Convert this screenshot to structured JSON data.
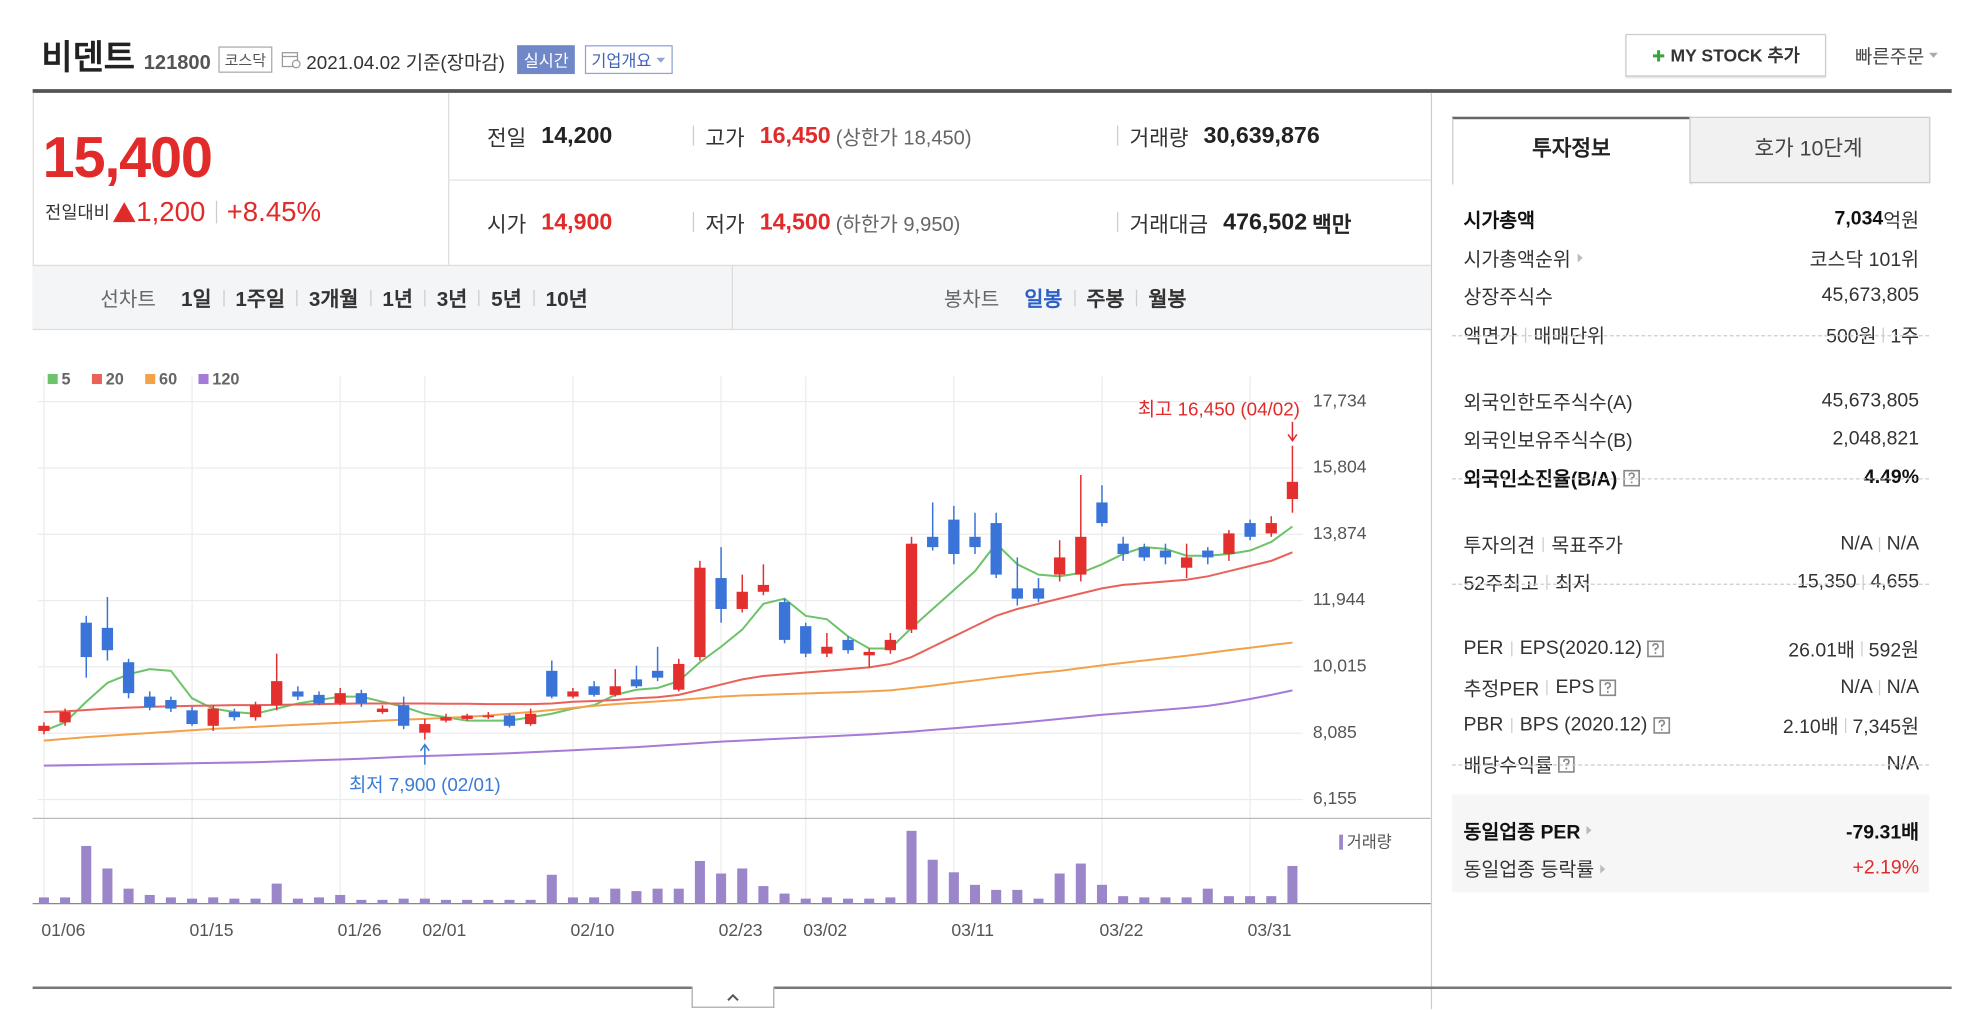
{
  "header": {
    "name": "비덴트",
    "code": "121800",
    "market": "코스닥",
    "date": "2021.04.02 기준(장마감)",
    "realtime": "실시간",
    "company": "기업개요",
    "my_stock": "MY STOCK 추가",
    "quick_order": "빠른주문"
  },
  "quote": {
    "price": "15,400",
    "change_label": "전일대비",
    "change": "1,200",
    "rate": "+8.45%",
    "fields": [
      {
        "label": "전일",
        "value": "14,200"
      },
      {
        "label": "고가",
        "value": "16,450",
        "note": "(상한가 18,450)",
        "red": true
      },
      {
        "label": "거래량",
        "value": "30,639,876"
      },
      {
        "label": "시가",
        "value": "14,900",
        "red": true
      },
      {
        "label": "저가",
        "value": "14,500",
        "note": "(하한가 9,950)",
        "red": true
      },
      {
        "label": "거래대금",
        "value": "476,502",
        "unit": "백만"
      }
    ]
  },
  "chart_tabs": {
    "line_label": "선차트",
    "line": [
      "1일",
      "1주일",
      "3개월",
      "1년",
      "3년",
      "5년",
      "10년"
    ],
    "candle_label": "봉차트",
    "candle": [
      "일봉",
      "주봉",
      "월봉"
    ],
    "candle_selected": 0
  },
  "chart_data": {
    "type": "candlestick",
    "categories": [
      "01/06",
      null,
      null,
      null,
      null,
      null,
      null,
      "01/15",
      null,
      null,
      null,
      null,
      null,
      null,
      "01/26",
      null,
      null,
      null,
      "02/01",
      null,
      null,
      null,
      null,
      null,
      null,
      "02/10",
      null,
      null,
      null,
      null,
      null,
      null,
      "02/23",
      null,
      null,
      null,
      "03/02",
      null,
      null,
      null,
      null,
      null,
      null,
      "03/11",
      null,
      null,
      null,
      null,
      null,
      null,
      "03/22",
      null,
      null,
      null,
      null,
      null,
      null,
      "03/31",
      null,
      null
    ],
    "open": [
      8150,
      8400,
      11300,
      11150,
      10150,
      9150,
      9050,
      8750,
      8300,
      8700,
      8550,
      8900,
      9300,
      9200,
      8950,
      9250,
      8700,
      8900,
      8100,
      8450,
      8500,
      8550,
      8600,
      8350,
      9900,
      9150,
      9450,
      9200,
      9650,
      9900,
      9350,
      10300,
      12600,
      11700,
      12200,
      11900,
      11200,
      10400,
      10800,
      10350,
      10500,
      11100,
      13800,
      14300,
      13800,
      14200,
      12300,
      12300,
      12700,
      12700,
      14800,
      13600,
      13500,
      13400,
      12900,
      13400,
      13300,
      14200,
      13900,
      14900
    ],
    "high": [
      8400,
      8800,
      11500,
      12050,
      10250,
      9300,
      9150,
      8850,
      8900,
      8800,
      9000,
      10400,
      9450,
      9300,
      9400,
      9350,
      8900,
      9150,
      8500,
      8650,
      8650,
      8700,
      8650,
      8800,
      10200,
      9400,
      9600,
      9950,
      10050,
      10600,
      10250,
      13100,
      13500,
      12700,
      13000,
      12000,
      11300,
      11000,
      10900,
      10550,
      11000,
      13800,
      14800,
      14700,
      14500,
      14500,
      13200,
      12600,
      13700,
      15600,
      15300,
      13800,
      13600,
      13600,
      13600,
      13500,
      14000,
      14300,
      14400,
      16450
    ],
    "low": [
      8050,
      8300,
      9700,
      10200,
      9100,
      8750,
      8700,
      8300,
      8150,
      8450,
      8450,
      8750,
      9050,
      8900,
      8900,
      8850,
      8650,
      8200,
      7900,
      8400,
      8450,
      8500,
      8250,
      8300,
      9100,
      9100,
      9150,
      9150,
      9400,
      9600,
      9300,
      10200,
      11300,
      11600,
      12100,
      10700,
      10300,
      10300,
      10400,
      10000,
      10400,
      11000,
      13400,
      13000,
      13300,
      12600,
      11800,
      11900,
      12500,
      12500,
      14100,
      13100,
      13100,
      13000,
      12600,
      13000,
      13100,
      13700,
      13800,
      14500
    ],
    "close": [
      8300,
      8700,
      10300,
      10500,
      9250,
      8850,
      8800,
      8350,
      8800,
      8550,
      8900,
      9600,
      9150,
      8950,
      9250,
      8950,
      8800,
      8300,
      8350,
      8550,
      8600,
      8600,
      8300,
      8650,
      9150,
      9300,
      9200,
      9450,
      9450,
      9700,
      10100,
      12900,
      11700,
      12200,
      12400,
      10800,
      10400,
      10600,
      10500,
      10450,
      10800,
      13600,
      13500,
      13300,
      13500,
      12700,
      12000,
      12000,
      13200,
      13800,
      14200,
      13300,
      13200,
      13200,
      13200,
      13200,
      13900,
      13800,
      14200,
      15400
    ],
    "up_color": "#e3302f",
    "down_color": "#3a74d9",
    "series": [
      {
        "name": "5",
        "color": "#6cc36a",
        "values": [
          8150,
          8400,
          9000,
          9550,
          9800,
          9950,
          9900,
          9100,
          8800,
          8700,
          8650,
          8800,
          8950,
          9050,
          9150,
          9150,
          9000,
          8850,
          8650,
          8550,
          8450,
          8450,
          8450,
          8550,
          8650,
          8800,
          8900,
          9200,
          9350,
          9400,
          9600,
          10150,
          10600,
          11100,
          11850,
          12000,
          11500,
          11400,
          10900,
          10550,
          10550,
          11150,
          11700,
          12250,
          12800,
          13600,
          13000,
          12700,
          12650,
          12750,
          13000,
          13300,
          13500,
          13450,
          13250,
          13250,
          13300,
          13400,
          13650,
          14100
        ]
      },
      {
        "name": "20",
        "color": "#e8625a",
        "values": [
          8700,
          8720,
          8760,
          8800,
          8830,
          8850,
          8870,
          8880,
          8890,
          8900,
          8900,
          8910,
          8920,
          8930,
          8940,
          8950,
          8950,
          8950,
          8950,
          8940,
          8940,
          8930,
          8930,
          8930,
          8950,
          9000,
          9020,
          9050,
          9100,
          9130,
          9200,
          9350,
          9500,
          9650,
          9750,
          9800,
          9850,
          9900,
          9950,
          10000,
          10100,
          10300,
          10600,
          10900,
          11200,
          11500,
          11700,
          11850,
          12000,
          12150,
          12300,
          12400,
          12450,
          12500,
          12550,
          12650,
          12800,
          12950,
          13100,
          13350
        ]
      },
      {
        "name": "60",
        "color": "#f4a24a",
        "values": [
          7870,
          7920,
          7970,
          8010,
          8050,
          8090,
          8130,
          8170,
          8210,
          8240,
          8270,
          8300,
          8330,
          8360,
          8390,
          8420,
          8450,
          8480,
          8500,
          8530,
          8560,
          8600,
          8650,
          8700,
          8760,
          8820,
          8880,
          8930,
          8970,
          9010,
          9050,
          9100,
          9150,
          9180,
          9200,
          9220,
          9240,
          9260,
          9280,
          9300,
          9330,
          9400,
          9470,
          9550,
          9620,
          9700,
          9770,
          9840,
          9900,
          9980,
          10060,
          10130,
          10200,
          10270,
          10340,
          10420,
          10500,
          10570,
          10650,
          10720
        ]
      },
      {
        "name": "120",
        "color": "#a57ad8",
        "values": [
          7140,
          7150,
          7160,
          7170,
          7180,
          7190,
          7200,
          7210,
          7220,
          7230,
          7240,
          7260,
          7280,
          7300,
          7320,
          7340,
          7370,
          7400,
          7420,
          7440,
          7460,
          7480,
          7500,
          7530,
          7560,
          7590,
          7620,
          7650,
          7680,
          7720,
          7760,
          7800,
          7840,
          7870,
          7900,
          7930,
          7960,
          7990,
          8020,
          8050,
          8090,
          8130,
          8180,
          8230,
          8280,
          8330,
          8380,
          8440,
          8500,
          8560,
          8620,
          8670,
          8720,
          8770,
          8820,
          8880,
          8970,
          9080,
          9200,
          9330
        ]
      }
    ],
    "ylim": [
      6155,
      17734
    ],
    "yticks": [
      {
        "value": 17734,
        "label": "17,734"
      },
      {
        "value": 15804,
        "label": "15,804"
      },
      {
        "value": 13874,
        "label": "13,874"
      },
      {
        "value": 11944,
        "label": "11,944"
      },
      {
        "value": 10015,
        "label": "10,015"
      },
      {
        "value": 8085,
        "label": "8,085"
      },
      {
        "value": 6155,
        "label": "6,155"
      }
    ],
    "grid": true,
    "high_label": "최고 16,450 (04/02)",
    "low_label": "최저 7,900 (02/01)",
    "volume": {
      "name": "거래량",
      "color": "#9a86c9",
      "ylim": [
        0,
        61200000
      ],
      "values": [
        5100000,
        5100000,
        46900000,
        28600000,
        12200000,
        7100000,
        5100000,
        4100000,
        5100000,
        4100000,
        4100000,
        16300000,
        4100000,
        5100000,
        7100000,
        3100000,
        3100000,
        4100000,
        4100000,
        3100000,
        3100000,
        3100000,
        3100000,
        3100000,
        23500000,
        5100000,
        5100000,
        12200000,
        10200000,
        12200000,
        12200000,
        34700000,
        24500000,
        28600000,
        14300000,
        8200000,
        4100000,
        5100000,
        4100000,
        4100000,
        5100000,
        59200000,
        35700000,
        25500000,
        15300000,
        11200000,
        11200000,
        4100000,
        24500000,
        32600000,
        15300000,
        6100000,
        5100000,
        5100000,
        5100000,
        12200000,
        6100000,
        6100000,
        6100000,
        30639876
      ]
    }
  },
  "side": {
    "tabs": [
      "투자정보",
      "호가 10단계"
    ],
    "groups": [
      [
        {
          "labels": [
            "시가총액"
          ],
          "values": [
            "7,034"
          ],
          "unit": "억원",
          "bold": true
        },
        {
          "labels": [
            "시가총액순위"
          ],
          "arrow": true,
          "values": [
            "코스닥 101위"
          ]
        },
        {
          "labels": [
            "상장주식수"
          ],
          "values": [
            "45,673,805"
          ]
        },
        {
          "labels": [
            "액면가",
            "매매단위"
          ],
          "values": [
            "500원",
            "1주"
          ]
        }
      ],
      [
        {
          "labels": [
            "외국인한도주식수(A)"
          ],
          "values": [
            "45,673,805"
          ]
        },
        {
          "labels": [
            "외국인보유주식수(B)"
          ],
          "values": [
            "2,048,821"
          ]
        },
        {
          "labels": [
            "외국인소진율(B/A)"
          ],
          "help": true,
          "bold": true,
          "values": [
            "4.49%"
          ]
        }
      ],
      [
        {
          "labels": [
            "투자의견",
            "목표주가"
          ],
          "values": [
            "N/A",
            "N/A"
          ]
        },
        {
          "labels": [
            "52주최고",
            "최저"
          ],
          "values": [
            "15,350",
            "4,655"
          ]
        }
      ],
      [
        {
          "labels": [
            "PER",
            "EPS(2020.12)"
          ],
          "help": true,
          "values": [
            "26.01배",
            "592원"
          ]
        },
        {
          "labels": [
            "추정PER",
            "EPS"
          ],
          "help": true,
          "values": [
            "N/A",
            "N/A"
          ]
        },
        {
          "labels": [
            "PBR",
            "BPS (2020.12)"
          ],
          "help": true,
          "values": [
            "2.10배",
            "7,345원"
          ]
        },
        {
          "labels": [
            "배당수익률"
          ],
          "help": true,
          "values": [
            "N/A"
          ]
        }
      ],
      [
        {
          "labels": [
            "동일업종 PER"
          ],
          "arrow": true,
          "bold": true,
          "values": [
            "-79.31배"
          ]
        },
        {
          "labels": [
            "동일업종 등락률"
          ],
          "arrow": true,
          "values": [
            "+2.19%"
          ],
          "red": true
        }
      ]
    ]
  }
}
